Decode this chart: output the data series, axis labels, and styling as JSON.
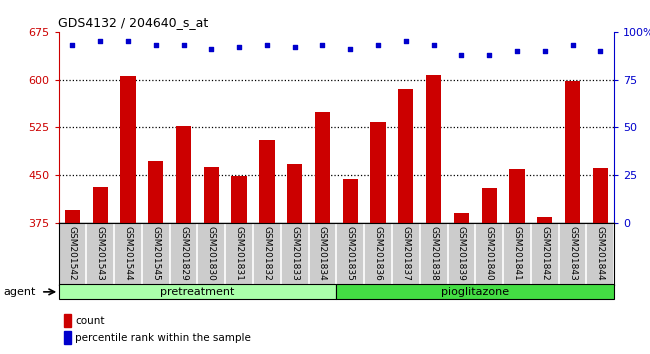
{
  "title": "GDS4132 / 204640_s_at",
  "categories": [
    "GSM201542",
    "GSM201543",
    "GSM201544",
    "GSM201545",
    "GSM201829",
    "GSM201830",
    "GSM201831",
    "GSM201832",
    "GSM201833",
    "GSM201834",
    "GSM201835",
    "GSM201836",
    "GSM201837",
    "GSM201838",
    "GSM201839",
    "GSM201840",
    "GSM201841",
    "GSM201842",
    "GSM201843",
    "GSM201844"
  ],
  "bar_values": [
    395,
    432,
    606,
    472,
    527,
    463,
    449,
    505,
    467,
    549,
    444,
    533,
    585,
    607,
    390,
    430,
    460,
    385,
    598,
    462
  ],
  "percentile_values": [
    93,
    95,
    95,
    93,
    93,
    91,
    92,
    93,
    92,
    93,
    91,
    93,
    95,
    93,
    88,
    88,
    90,
    90,
    93,
    90
  ],
  "bar_color": "#cc0000",
  "percentile_color": "#0000cc",
  "ylim_left": [
    375,
    675
  ],
  "ylim_right": [
    0,
    100
  ],
  "yticks_left": [
    375,
    450,
    525,
    600,
    675
  ],
  "yticks_right": [
    0,
    25,
    50,
    75,
    100
  ],
  "pretreatment_count": 10,
  "pioglitazone_count": 10,
  "pretreatment_label": "pretreatment",
  "pioglitazone_label": "pioglitazone",
  "agent_label": "agent",
  "legend_count_label": "count",
  "legend_percentile_label": "percentile rank within the sample",
  "background_color": "#ffffff",
  "bar_bg_color": "#cccccc",
  "dotted_line_color": "#000000",
  "group_pretreat_color": "#aaffaa",
  "group_pioglitazone_color": "#44dd44",
  "plot_bg_color": "#ffffff"
}
